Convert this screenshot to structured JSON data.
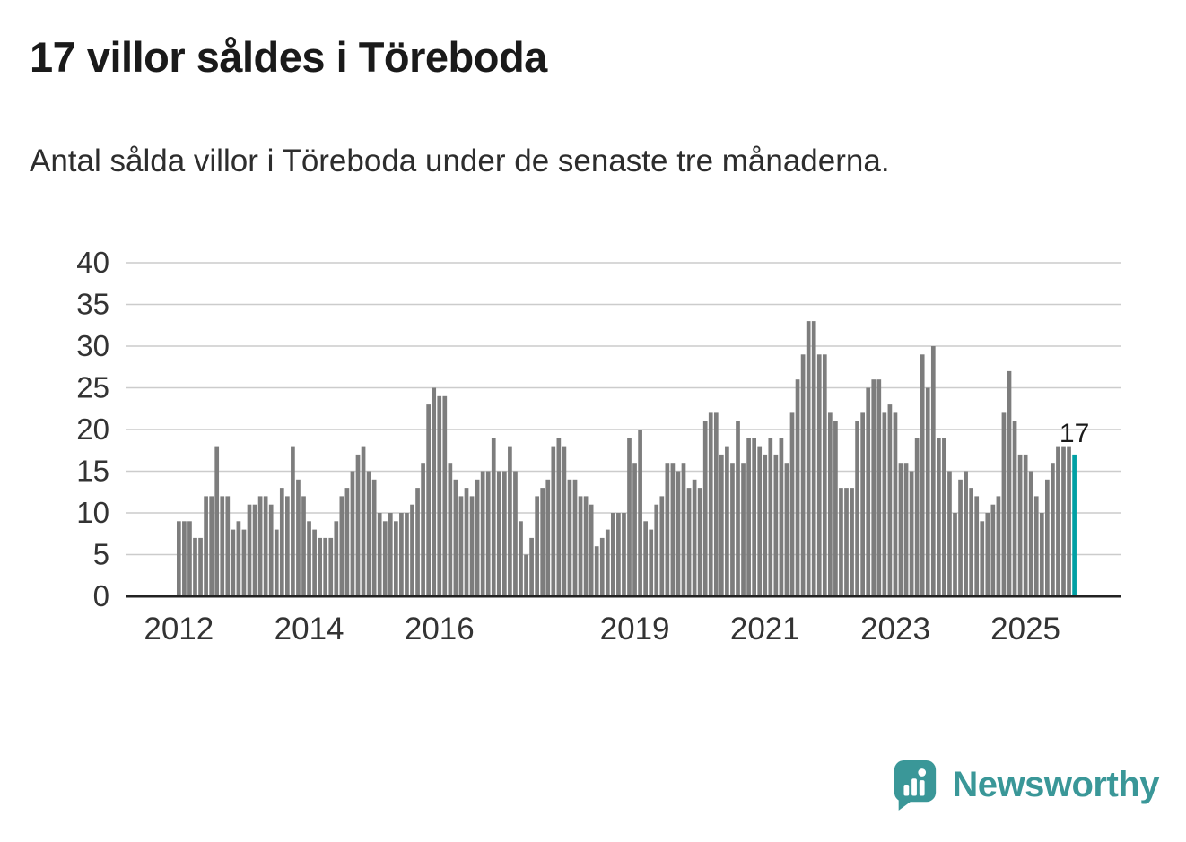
{
  "header": {
    "title": "17 villor såldes i Töreboda",
    "subtitle": "Antal sålda villor i Töreboda under de senaste tre månaderna."
  },
  "footer": {
    "brand": "Newsworthy"
  },
  "colors": {
    "bar": "#7d7d7d",
    "highlight": "#00a0a4",
    "grid": "#cccccc",
    "baseline": "#222222",
    "tick_label": "#333333",
    "annotation": "#1a1a1a",
    "brand": "#3a9798"
  },
  "chart_data": {
    "type": "bar",
    "title": "17 villor såldes i Töreboda",
    "subtitle": "Antal sålda villor i Töreboda under de senaste tre månaderna.",
    "unit": "sålda villor per 3 månader (månadsvis)",
    "start": "2012-01",
    "end": "2025-10",
    "ylim": [
      0,
      40
    ],
    "grid": true,
    "legend": false,
    "y_ticks": [
      0,
      5,
      10,
      15,
      20,
      25,
      30,
      35,
      40
    ],
    "x_ticks": [
      {
        "label": "2012",
        "month_index": 0
      },
      {
        "label": "2014",
        "month_index": 24
      },
      {
        "label": "2016",
        "month_index": 48
      },
      {
        "label": "2019",
        "month_index": 84
      },
      {
        "label": "2021",
        "month_index": 108
      },
      {
        "label": "2023",
        "month_index": 132
      },
      {
        "label": "2025",
        "month_index": 156
      }
    ],
    "highlight_index": 165,
    "highlight_value_label": "17",
    "values": [
      9,
      9,
      9,
      7,
      7,
      12,
      12,
      18,
      12,
      12,
      8,
      9,
      8,
      11,
      11,
      12,
      12,
      11,
      8,
      13,
      12,
      18,
      14,
      12,
      9,
      8,
      7,
      7,
      7,
      9,
      12,
      13,
      15,
      17,
      18,
      15,
      14,
      10,
      9,
      10,
      9,
      10,
      10,
      11,
      13,
      16,
      23,
      25,
      24,
      24,
      16,
      14,
      12,
      13,
      12,
      14,
      15,
      15,
      19,
      15,
      15,
      18,
      15,
      9,
      5,
      7,
      12,
      13,
      14,
      18,
      19,
      18,
      14,
      14,
      12,
      12,
      11,
      6,
      7,
      8,
      10,
      10,
      10,
      19,
      16,
      20,
      9,
      8,
      11,
      12,
      16,
      16,
      15,
      16,
      13,
      14,
      13,
      21,
      22,
      22,
      17,
      18,
      16,
      21,
      16,
      19,
      19,
      18,
      17,
      19,
      17,
      19,
      16,
      22,
      26,
      29,
      33,
      33,
      29,
      29,
      22,
      21,
      13,
      13,
      13,
      21,
      22,
      25,
      26,
      26,
      22,
      23,
      22,
      16,
      16,
      15,
      19,
      29,
      25,
      30,
      19,
      19,
      15,
      10,
      14,
      15,
      13,
      12,
      9,
      10,
      11,
      12,
      22,
      27,
      21,
      17,
      17,
      15,
      12,
      10,
      14,
      16,
      18,
      18,
      18,
      17
    ]
  }
}
